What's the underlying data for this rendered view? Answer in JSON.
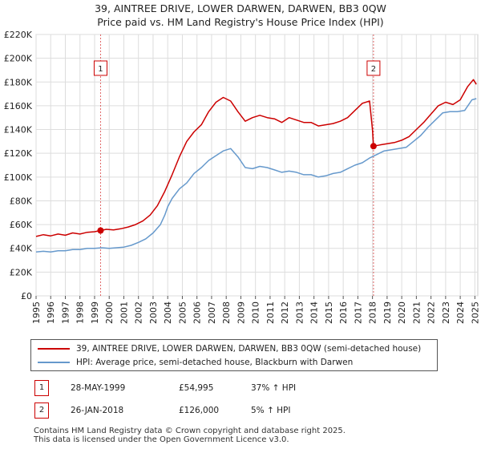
{
  "title": {
    "line1": "39, AINTREE DRIVE, LOWER DARWEN, DARWEN, BB3 0QW",
    "line2": "Price paid vs. HM Land Registry's House Price Index (HPI)"
  },
  "chart_data": {
    "type": "line",
    "title": "39, AINTREE DRIVE, LOWER DARWEN, DARWEN, BB3 0QW — Price paid vs. HM Land Registry's House Price Index (HPI)",
    "xlabel": "",
    "ylabel": "",
    "xlim": [
      1995,
      2025.2
    ],
    "ylim": [
      0,
      220000
    ],
    "y_ticks": [
      0,
      20000,
      40000,
      60000,
      80000,
      100000,
      120000,
      140000,
      160000,
      180000,
      200000,
      220000
    ],
    "y_tick_labels": [
      "£0",
      "£20K",
      "£40K",
      "£60K",
      "£80K",
      "£100K",
      "£120K",
      "£140K",
      "£160K",
      "£180K",
      "£200K",
      "£220K"
    ],
    "x_ticks": [
      1995,
      1996,
      1997,
      1998,
      1999,
      2000,
      2001,
      2002,
      2003,
      2004,
      2005,
      2006,
      2007,
      2008,
      2009,
      2010,
      2011,
      2012,
      2013,
      2014,
      2015,
      2016,
      2017,
      2018,
      2019,
      2020,
      2021,
      2022,
      2023,
      2024,
      2025
    ],
    "x_tick_labels": [
      "1995",
      "1996",
      "1997",
      "1998",
      "1999",
      "2000",
      "2001",
      "2002",
      "2003",
      "2004",
      "2005",
      "2006",
      "2007",
      "2008",
      "2009",
      "2010",
      "2011",
      "2012",
      "2013",
      "2014",
      "2015",
      "2016",
      "2017",
      "2018",
      "2019",
      "2020",
      "2021",
      "2022",
      "2023",
      "2024",
      "2025"
    ],
    "grid": true,
    "series": [
      {
        "name": "39, AINTREE DRIVE, LOWER DARWEN, DARWEN, BB3 0QW (semi-detached house)",
        "color": "#cc0000",
        "points": [
          [
            1995.0,
            50000
          ],
          [
            1995.5,
            51500
          ],
          [
            1996.0,
            50500
          ],
          [
            1996.5,
            52000
          ],
          [
            1997.0,
            51000
          ],
          [
            1997.5,
            53000
          ],
          [
            1998.0,
            52000
          ],
          [
            1998.5,
            53500
          ],
          [
            1999.0,
            54000
          ],
          [
            1999.41,
            54995
          ],
          [
            1999.8,
            56000
          ],
          [
            2000.3,
            55500
          ],
          [
            2000.8,
            56500
          ],
          [
            2001.3,
            58000
          ],
          [
            2001.8,
            60000
          ],
          [
            2002.3,
            63000
          ],
          [
            2002.8,
            68000
          ],
          [
            2003.3,
            76000
          ],
          [
            2003.8,
            88000
          ],
          [
            2004.3,
            102000
          ],
          [
            2004.8,
            117000
          ],
          [
            2005.3,
            130000
          ],
          [
            2005.8,
            138000
          ],
          [
            2006.3,
            144000
          ],
          [
            2006.8,
            155000
          ],
          [
            2007.3,
            163000
          ],
          [
            2007.8,
            167000
          ],
          [
            2008.3,
            164000
          ],
          [
            2008.8,
            155000
          ],
          [
            2009.3,
            147000
          ],
          [
            2009.8,
            150000
          ],
          [
            2010.3,
            152000
          ],
          [
            2010.8,
            150000
          ],
          [
            2011.3,
            149000
          ],
          [
            2011.8,
            146000
          ],
          [
            2012.3,
            150000
          ],
          [
            2012.8,
            148000
          ],
          [
            2013.3,
            146000
          ],
          [
            2013.8,
            146000
          ],
          [
            2014.3,
            143000
          ],
          [
            2014.8,
            144000
          ],
          [
            2015.3,
            145000
          ],
          [
            2015.8,
            147000
          ],
          [
            2016.3,
            150000
          ],
          [
            2016.8,
            156000
          ],
          [
            2017.3,
            162000
          ],
          [
            2017.8,
            164000
          ],
          [
            2018.0,
            140000
          ],
          [
            2018.07,
            126000
          ],
          [
            2018.5,
            127000
          ],
          [
            2019.0,
            128000
          ],
          [
            2019.5,
            129000
          ],
          [
            2020.0,
            131000
          ],
          [
            2020.5,
            134000
          ],
          [
            2021.0,
            140000
          ],
          [
            2021.5,
            146000
          ],
          [
            2022.0,
            153000
          ],
          [
            2022.5,
            160000
          ],
          [
            2023.0,
            163000
          ],
          [
            2023.5,
            161000
          ],
          [
            2024.0,
            165000
          ],
          [
            2024.5,
            176000
          ],
          [
            2024.9,
            182000
          ],
          [
            2025.1,
            178000
          ]
        ]
      },
      {
        "name": "HPI: Average price, semi-detached house, Blackburn with Darwen",
        "color": "#6699cc",
        "points": [
          [
            1995.0,
            37000
          ],
          [
            1995.5,
            37500
          ],
          [
            1996.0,
            37000
          ],
          [
            1996.5,
            38000
          ],
          [
            1997.0,
            38000
          ],
          [
            1997.5,
            39000
          ],
          [
            1998.0,
            39000
          ],
          [
            1998.5,
            40000
          ],
          [
            1999.0,
            40000
          ],
          [
            1999.5,
            40500
          ],
          [
            2000.0,
            40000
          ],
          [
            2000.5,
            40500
          ],
          [
            2001.0,
            41000
          ],
          [
            2001.5,
            42500
          ],
          [
            2002.0,
            45000
          ],
          [
            2002.5,
            48000
          ],
          [
            2003.0,
            53000
          ],
          [
            2003.5,
            60000
          ],
          [
            2003.8,
            68000
          ],
          [
            2004.0,
            75000
          ],
          [
            2004.3,
            82000
          ],
          [
            2004.8,
            90000
          ],
          [
            2005.3,
            95000
          ],
          [
            2005.8,
            103000
          ],
          [
            2006.3,
            108000
          ],
          [
            2006.8,
            114000
          ],
          [
            2007.3,
            118000
          ],
          [
            2007.8,
            122000
          ],
          [
            2008.3,
            124000
          ],
          [
            2008.8,
            117000
          ],
          [
            2009.3,
            108000
          ],
          [
            2009.8,
            107000
          ],
          [
            2010.3,
            109000
          ],
          [
            2010.8,
            108000
          ],
          [
            2011.3,
            106000
          ],
          [
            2011.8,
            104000
          ],
          [
            2012.3,
            105000
          ],
          [
            2012.8,
            104000
          ],
          [
            2013.3,
            102000
          ],
          [
            2013.8,
            102000
          ],
          [
            2014.3,
            100000
          ],
          [
            2014.8,
            101000
          ],
          [
            2015.3,
            103000
          ],
          [
            2015.8,
            104000
          ],
          [
            2016.3,
            107000
          ],
          [
            2016.8,
            110000
          ],
          [
            2017.3,
            112000
          ],
          [
            2017.8,
            116000
          ],
          [
            2018.3,
            119000
          ],
          [
            2018.8,
            122000
          ],
          [
            2019.3,
            123000
          ],
          [
            2019.8,
            124000
          ],
          [
            2020.3,
            125000
          ],
          [
            2020.8,
            130000
          ],
          [
            2021.3,
            135000
          ],
          [
            2021.8,
            142000
          ],
          [
            2022.3,
            148000
          ],
          [
            2022.8,
            154000
          ],
          [
            2023.3,
            155000
          ],
          [
            2023.8,
            155000
          ],
          [
            2024.3,
            156000
          ],
          [
            2024.8,
            165000
          ],
          [
            2025.1,
            166000
          ]
        ]
      }
    ],
    "sales": [
      {
        "label": "1",
        "x": 1999.41,
        "y": 54995
      },
      {
        "label": "2",
        "x": 2018.07,
        "y": 126000
      }
    ]
  },
  "legend": {
    "property_label": "39, AINTREE DRIVE, LOWER DARWEN, DARWEN, BB3 0QW (semi-detached house)",
    "hpi_label": "HPI: Average price, semi-detached house, Blackburn with Darwen"
  },
  "sales_table": [
    {
      "num": "1",
      "date": "28-MAY-1999",
      "price": "£54,995",
      "hpi": "37% ↑ HPI"
    },
    {
      "num": "2",
      "date": "26-JAN-2018",
      "price": "£126,000",
      "hpi": "5% ↑ HPI"
    }
  ],
  "footer": {
    "line1": "Contains HM Land Registry data © Crown copyright and database right 2025.",
    "line2": "This data is licensed under the Open Government Licence v3.0."
  }
}
